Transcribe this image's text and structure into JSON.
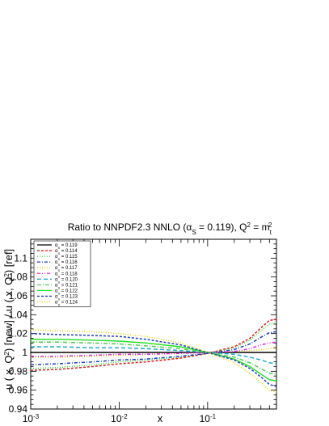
{
  "chart_data": {
    "type": "line",
    "title": {
      "main": "Ratio to NNPDF2.3 NNLO (",
      "alpha_sym": "α",
      "alpha_sub": "S",
      "alpha_val": " = 0.119), Q",
      "q_sup": "2",
      "eq": " = m",
      "m_sub": "t",
      "m_sup": "2"
    },
    "xlabel": "x",
    "ylabel": {
      "part1": "u ( x, Q",
      "sup1": "2",
      "part2": ") [new] / u ( x, Q",
      "sup2": "2",
      "part3": ") [ref]"
    },
    "x_scale": "log",
    "xlim": [
      0.001,
      0.6
    ],
    "ylim": [
      0.94,
      1.12
    ],
    "x_ticks": [
      {
        "value": 0.001,
        "base": "10",
        "exp": "-3"
      },
      {
        "value": 0.01,
        "base": "10",
        "exp": "-2"
      },
      {
        "value": 0.1,
        "base": "10",
        "exp": "-1"
      }
    ],
    "y_ticks": [
      "0.94",
      "0.96",
      "0.98",
      "1",
      "1.02",
      "1.04",
      "1.06",
      "1.08",
      "1.1"
    ],
    "legend_position": "top-left",
    "x": [
      0.001,
      0.002,
      0.005,
      0.01,
      0.02,
      0.05,
      0.1,
      0.2,
      0.3,
      0.4,
      0.5,
      0.6
    ],
    "series": [
      {
        "name": "0.119",
        "color": "#000000",
        "dash": "",
        "values": [
          1.0,
          1.0,
          1.0,
          1.0,
          1.0,
          1.0,
          1.0,
          1.0,
          1.0,
          1.0,
          1.0,
          1.0
        ]
      },
      {
        "name": "0.114",
        "color": "#e41a1c",
        "dash": "3,2",
        "values": [
          0.981,
          0.982,
          0.985,
          0.988,
          0.99,
          0.994,
          0.999,
          1.006,
          1.015,
          1.026,
          1.034,
          1.035
        ]
      },
      {
        "name": "0.115",
        "color": "#33cc33",
        "dash": "1,2",
        "values": [
          0.983,
          0.984,
          0.987,
          0.99,
          0.992,
          0.995,
          0.999,
          1.005,
          1.013,
          1.023,
          1.03,
          1.031
        ]
      },
      {
        "name": "0.116",
        "color": "#1f3fbf",
        "dash": "4,2,1,2",
        "values": [
          0.987,
          0.988,
          0.99,
          0.992,
          0.993,
          0.996,
          0.999,
          1.003,
          1.009,
          1.016,
          1.021,
          1.022
        ]
      },
      {
        "name": "0.117",
        "color": "#e6c800",
        "dash": "1,2",
        "values": [
          0.995,
          0.995,
          0.996,
          0.997,
          0.998,
          0.999,
          1.0,
          1.001,
          1.002,
          1.003,
          1.004,
          1.004
        ]
      },
      {
        "name": "0.118",
        "color": "#dd33dd",
        "dash": "4,2,1,2,1,2",
        "values": [
          0.996,
          0.996,
          0.997,
          0.998,
          0.998,
          0.999,
          1.0,
          1.001,
          1.004,
          1.008,
          1.01,
          1.011
        ]
      },
      {
        "name": "0.120",
        "color": "#22aacc",
        "dash": "5,3",
        "values": [
          1.006,
          1.006,
          1.005,
          1.005,
          1.004,
          1.002,
          1.0,
          0.998,
          0.995,
          0.992,
          0.989,
          0.988
        ]
      },
      {
        "name": "0.121",
        "color": "#55cc55",
        "dash": "5,2,1,2",
        "values": [
          1.011,
          1.011,
          1.01,
          1.009,
          1.007,
          1.004,
          1.0,
          0.995,
          0.989,
          0.983,
          0.978,
          0.977
        ]
      },
      {
        "name": "0.122",
        "color": "#22dd22",
        "dash": "",
        "values": [
          1.014,
          1.014,
          1.013,
          1.012,
          1.01,
          1.006,
          1.0,
          0.993,
          0.985,
          0.977,
          0.971,
          0.97
        ]
      },
      {
        "name": "0.123",
        "color": "#1f3fbf",
        "dash": "3,2",
        "values": [
          1.02,
          1.019,
          1.018,
          1.017,
          1.014,
          1.008,
          1.0,
          0.992,
          0.983,
          0.974,
          0.966,
          0.964
        ]
      },
      {
        "name": "0.124",
        "color": "#e6d200",
        "dash": "1,2",
        "values": [
          1.024,
          1.023,
          1.022,
          1.02,
          1.017,
          1.01,
          1.0,
          0.989,
          0.978,
          0.968,
          0.96,
          0.958
        ]
      }
    ]
  }
}
